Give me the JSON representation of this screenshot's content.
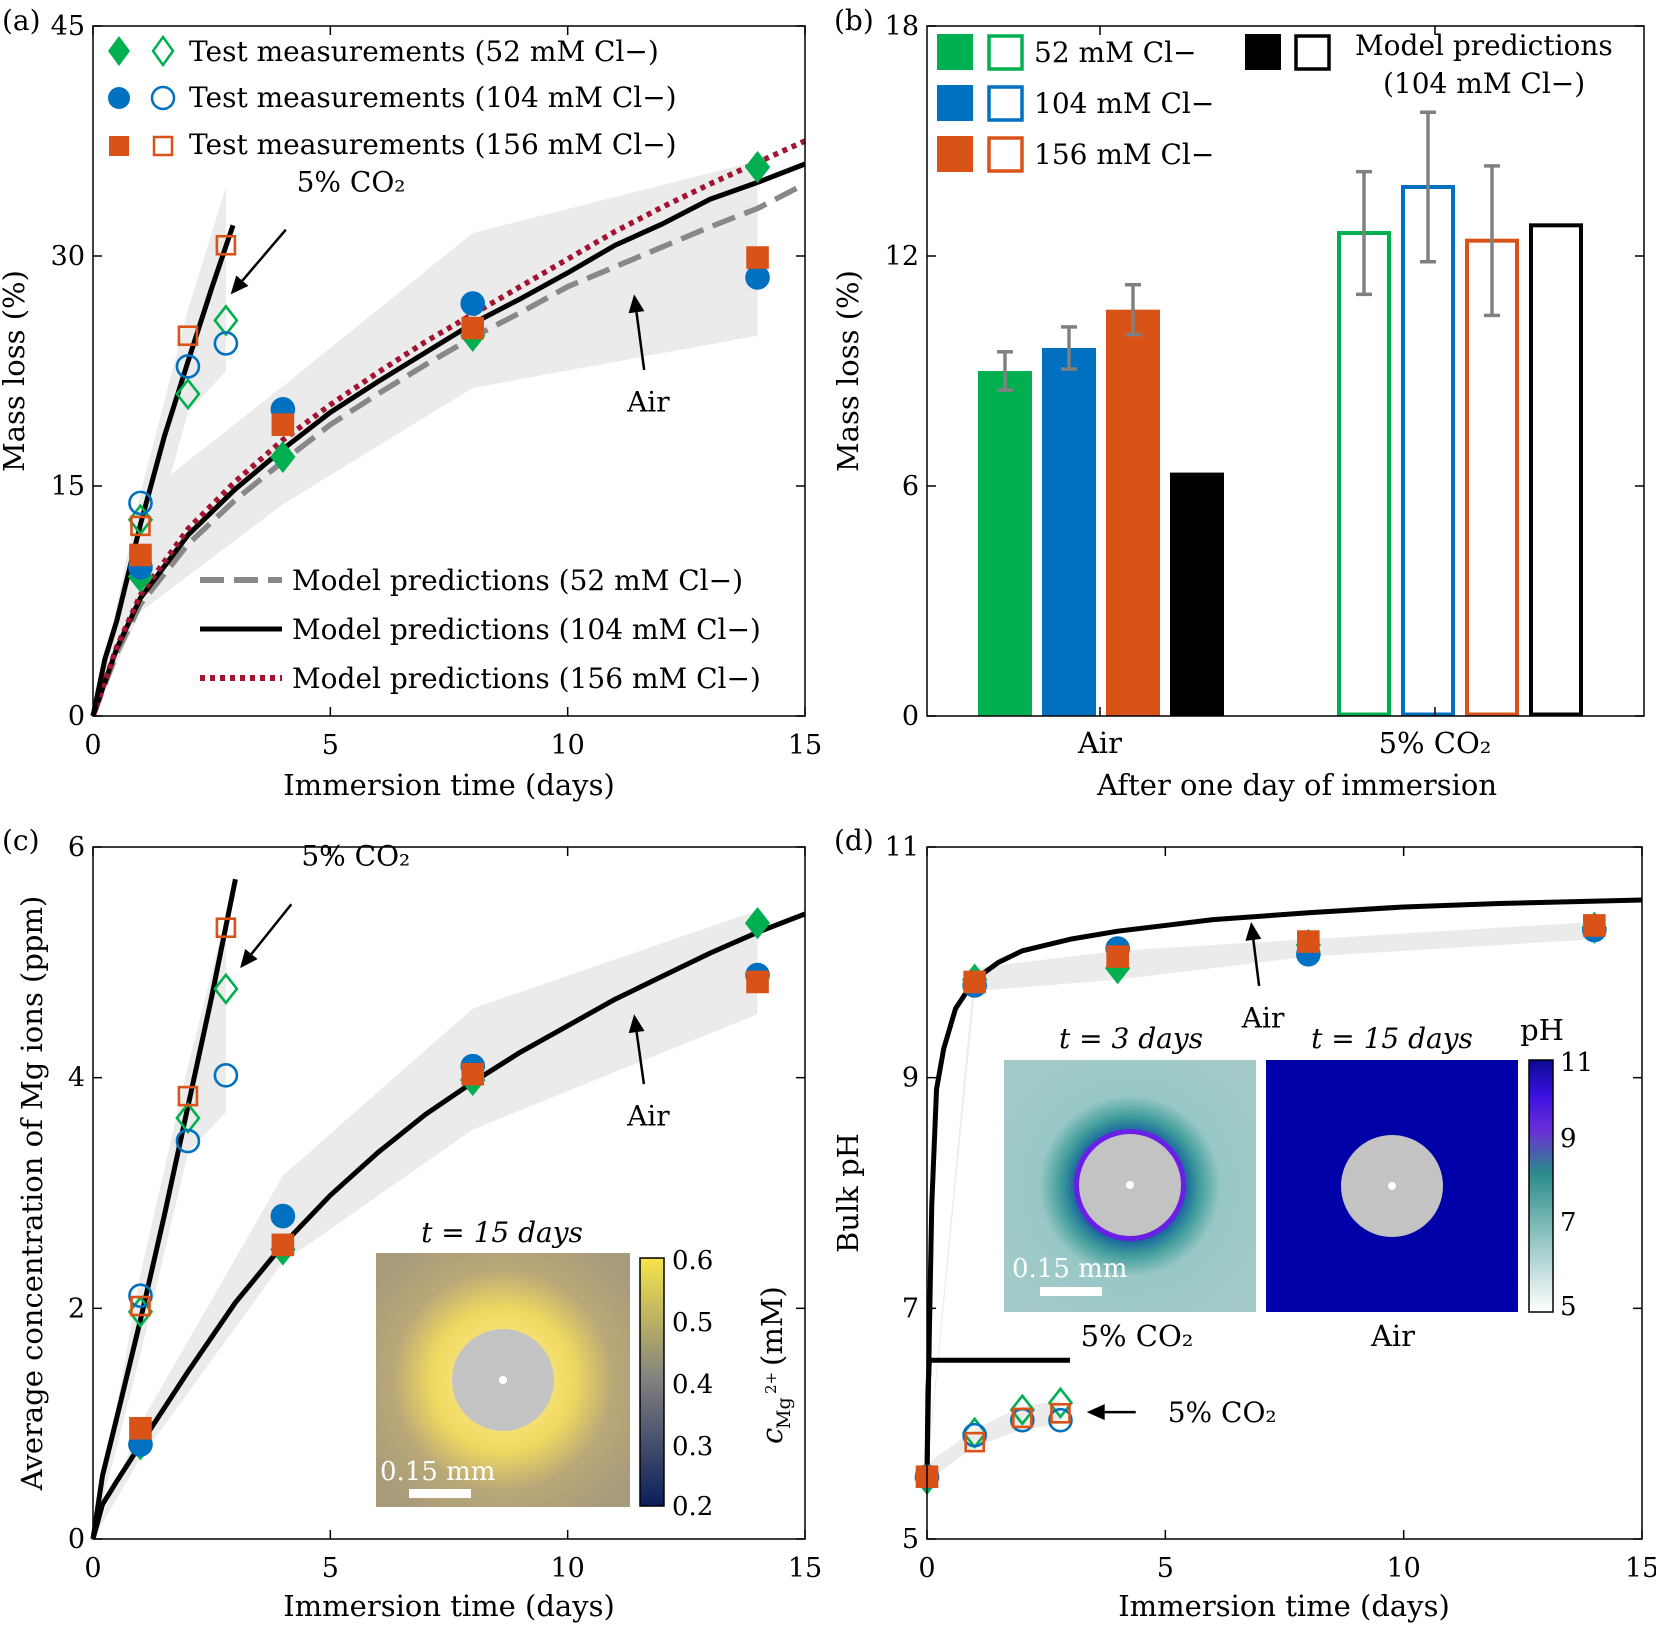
{
  "colors": {
    "green": "#00b050",
    "blue": "#0070c0",
    "orange": "#d95319",
    "model_104": "#000000",
    "model_52": "#888888",
    "model_156": "#a2142f",
    "band": "#ebebeb",
    "errorbar": "#808080"
  },
  "chart_data": [
    {
      "panel": "(a)",
      "type": "scatter+line",
      "xlabel": "Immersion time (days)",
      "ylabel": "Mass loss (%)",
      "xlim": [
        0,
        15
      ],
      "ylim": [
        0,
        45
      ],
      "xticks": [
        0,
        5,
        10,
        15
      ],
      "yticks": [
        0,
        15,
        30,
        45
      ],
      "legend": [
        {
          "label": "Test measurements (52 mM Cl−)",
          "color": "green",
          "marker": "diamond"
        },
        {
          "label": "Test measurements (104 mM Cl−)",
          "color": "blue",
          "marker": "circle"
        },
        {
          "label": "Test measurements (156 mM Cl−)",
          "color": "orange",
          "marker": "square"
        }
      ],
      "legend2": [
        {
          "label": "Model predictions (52 mM Cl−)",
          "style": "dashed",
          "color": "model_52"
        },
        {
          "label": "Model predictions (104 mM Cl−)",
          "style": "solid",
          "color": "model_104"
        },
        {
          "label": "Model predictions (156 mM Cl−)",
          "style": "dotted",
          "color": "model_156"
        }
      ],
      "annotations": [
        {
          "text": "5% CO₂",
          "target": [
            2.9,
            27.5
          ],
          "label_at": [
            4.5,
            33.3
          ]
        },
        {
          "text": "Air",
          "target": [
            11.4,
            27.5
          ],
          "label_at": [
            11.7,
            20.5
          ]
        }
      ],
      "air_band": {
        "x": [
          0,
          1,
          4,
          8,
          14
        ],
        "lower": [
          0,
          6.8,
          13.8,
          21.4,
          24.8
        ],
        "upper": [
          0,
          14.2,
          21.5,
          31.5,
          36.2
        ]
      },
      "co2_band": {
        "x": [
          0,
          1,
          2,
          2.8
        ],
        "lower": [
          0,
          8.6,
          19.8,
          22.5
        ],
        "upper": [
          0,
          14.5,
          26.5,
          34.5
        ]
      },
      "series": [
        {
          "name": "52 mM Air",
          "color": "green",
          "marker": "diamond",
          "filled": true,
          "x": [
            1,
            4,
            8,
            14
          ],
          "y": [
            9.1,
            16.9,
            24.8,
            35.8
          ]
        },
        {
          "name": "104 mM Air",
          "color": "blue",
          "marker": "circle",
          "filled": true,
          "x": [
            1,
            4,
            8,
            14
          ],
          "y": [
            9.7,
            20.0,
            26.9,
            28.6
          ]
        },
        {
          "name": "156 mM Air",
          "color": "orange",
          "marker": "square",
          "filled": true,
          "x": [
            1,
            4,
            8,
            14
          ],
          "y": [
            10.5,
            19.0,
            25.3,
            29.9
          ]
        },
        {
          "name": "52 mM 5% CO2",
          "color": "green",
          "marker": "diamond",
          "filled": false,
          "x": [
            1,
            2,
            2.8
          ],
          "y": [
            12.8,
            21.0,
            25.8
          ]
        },
        {
          "name": "104 mM 5% CO2",
          "color": "blue",
          "marker": "circle",
          "filled": false,
          "x": [
            1,
            2,
            2.8
          ],
          "y": [
            13.9,
            22.8,
            24.3
          ]
        },
        {
          "name": "156 mM 5% CO2",
          "color": "orange",
          "marker": "square",
          "filled": false,
          "x": [
            1,
            2,
            2.8
          ],
          "y": [
            12.4,
            24.8,
            30.7
          ]
        }
      ],
      "lines": [
        {
          "name": "model 52 air",
          "style": "dashed",
          "color": "model_52",
          "x": [
            0,
            0.5,
            1,
            2,
            3,
            4,
            5,
            6,
            7,
            8,
            9,
            10,
            11,
            12,
            13,
            14,
            15
          ],
          "y": [
            0,
            4.1,
            7.3,
            11.2,
            14.1,
            16.6,
            19.0,
            21.0,
            22.9,
            24.7,
            26.3,
            28.0,
            29.3,
            30.6,
            31.9,
            33.1,
            34.7
          ]
        },
        {
          "name": "model 104 air",
          "style": "solid",
          "color": "model_104",
          "x": [
            0,
            0.5,
            1,
            2,
            3,
            4,
            5,
            6,
            7,
            8,
            9,
            10,
            11,
            12,
            13,
            14,
            15
          ],
          "y": [
            0,
            4.4,
            7.7,
            11.8,
            14.8,
            17.4,
            19.8,
            21.8,
            23.7,
            25.6,
            27.2,
            28.9,
            30.7,
            32.1,
            33.7,
            34.8,
            36.0
          ]
        },
        {
          "name": "model 156 air",
          "style": "dotted",
          "color": "model_156",
          "x": [
            0,
            0.5,
            1,
            2,
            3,
            4,
            5,
            6,
            7,
            8,
            9,
            10,
            11,
            12,
            13,
            14,
            15
          ],
          "y": [
            0,
            4.5,
            7.9,
            12.2,
            15.3,
            18.0,
            20.3,
            22.4,
            24.4,
            26.2,
            28.0,
            29.8,
            31.6,
            33.2,
            34.7,
            36.1,
            37.5
          ]
        },
        {
          "name": "model 104 co2",
          "style": "solid",
          "color": "model_104",
          "x": [
            0,
            0.25,
            0.5,
            1,
            1.5,
            2,
            2.5,
            2.95
          ],
          "y": [
            0,
            3.7,
            6.2,
            12.5,
            18.2,
            23.1,
            27.9,
            32.0
          ]
        }
      ]
    },
    {
      "panel": "(b)",
      "type": "bar",
      "xlabel": "After one day of immersion",
      "ylabel": "Mass loss (%)",
      "ylim": [
        0,
        18
      ],
      "yticks": [
        0,
        6,
        12,
        18
      ],
      "categories": [
        "Air",
        "5% CO₂"
      ],
      "legend": [
        {
          "label": "52 mM Cl−",
          "color": "green"
        },
        {
          "label": "104 mM Cl−",
          "color": "blue"
        },
        {
          "label": "156 mM Cl−",
          "color": "orange"
        },
        {
          "label": "Model predictions",
          "label2": "(104 mM Cl−)",
          "color": "model_104"
        }
      ],
      "series": [
        {
          "name": "52 mM Cl−",
          "color": "green",
          "values": [
            9.0,
            12.6
          ],
          "err": [
            0.5,
            1.6
          ]
        },
        {
          "name": "104 mM Cl−",
          "color": "blue",
          "values": [
            9.6,
            13.8
          ],
          "err": [
            0.55,
            1.95
          ]
        },
        {
          "name": "156 mM Cl−",
          "color": "orange",
          "values": [
            10.6,
            12.4
          ],
          "err": [
            0.65,
            1.95
          ]
        },
        {
          "name": "Model predictions (104 mM Cl−)",
          "color": "model_104",
          "values": [
            6.35,
            12.8
          ],
          "err": null
        }
      ]
    },
    {
      "panel": "(c)",
      "type": "scatter+line",
      "xlabel": "Immersion time (days)",
      "ylabel": "Average concentration of Mg ions (ppm)",
      "xlim": [
        0,
        15
      ],
      "ylim": [
        0,
        6
      ],
      "xticks": [
        0,
        5,
        10,
        15
      ],
      "yticks": [
        0,
        2,
        4,
        6
      ],
      "annotations": [
        {
          "text": "5% CO₂",
          "target": [
            3.1,
            4.95
          ],
          "label_at": [
            4.6,
            5.72
          ]
        },
        {
          "text": "Air",
          "target": [
            11.4,
            4.55
          ],
          "label_at": [
            11.7,
            3.67
          ]
        }
      ],
      "air_band": {
        "x": [
          0,
          1,
          4,
          8,
          14
        ],
        "lower": [
          0,
          0.7,
          2.4,
          3.55,
          4.55
        ],
        "upper": [
          0,
          1.0,
          3.15,
          4.6,
          5.45
        ]
      },
      "co2_band": {
        "x": [
          0,
          1,
          2,
          2.8
        ],
        "lower": [
          0,
          1.6,
          3.35,
          3.7
        ],
        "upper": [
          0,
          2.3,
          4.1,
          5.4
        ]
      },
      "series": [
        {
          "name": "52 mM Air",
          "color": "green",
          "marker": "diamond",
          "filled": true,
          "x": [
            1,
            4,
            8,
            14
          ],
          "y": [
            0.82,
            2.51,
            3.98,
            5.34
          ]
        },
        {
          "name": "104 mM Air",
          "color": "blue",
          "marker": "circle",
          "filled": true,
          "x": [
            1,
            4,
            8,
            14
          ],
          "y": [
            0.82,
            2.8,
            4.1,
            4.89
          ]
        },
        {
          "name": "156 mM Air",
          "color": "orange",
          "marker": "square",
          "filled": true,
          "x": [
            1,
            4,
            8,
            14
          ],
          "y": [
            0.96,
            2.55,
            4.03,
            4.83
          ]
        },
        {
          "name": "52 mM 5% CO2",
          "color": "green",
          "marker": "diamond",
          "filled": false,
          "x": [
            1,
            2,
            2.8
          ],
          "y": [
            1.97,
            3.65,
            4.77
          ]
        },
        {
          "name": "104 mM 5% CO2",
          "color": "blue",
          "marker": "circle",
          "filled": false,
          "x": [
            1,
            2,
            2.8
          ],
          "y": [
            2.11,
            3.45,
            4.02
          ]
        },
        {
          "name": "156 mM 5% CO2",
          "color": "orange",
          "marker": "square",
          "filled": false,
          "x": [
            1,
            2,
            2.8
          ],
          "y": [
            2.02,
            3.84,
            5.3
          ]
        }
      ],
      "lines": [
        {
          "name": "model air",
          "style": "solid",
          "color": "model_104",
          "x": [
            0,
            0.2,
            0.5,
            1,
            2,
            3,
            4,
            5,
            6,
            7,
            8,
            9,
            10,
            11,
            12,
            13,
            14,
            15
          ],
          "y": [
            0,
            0.3,
            0.5,
            0.82,
            1.45,
            2.05,
            2.55,
            2.98,
            3.35,
            3.68,
            3.96,
            4.22,
            4.45,
            4.68,
            4.88,
            5.08,
            5.26,
            5.42
          ]
        },
        {
          "name": "model co2",
          "style": "solid",
          "color": "model_104",
          "x": [
            0,
            0.2,
            0.5,
            1,
            1.5,
            2,
            2.5,
            3.0
          ],
          "y": [
            0,
            0.55,
            1.05,
            1.9,
            2.8,
            3.75,
            4.7,
            5.72
          ]
        }
      ],
      "inset": {
        "title": "t = 15 days",
        "scale_label": "0.15 mm",
        "colorbar_ticks": [
          "0.6",
          "0.5",
          "0.4",
          "0.3",
          "0.2"
        ],
        "colorbar_label": "c",
        "colorbar_sub": "Mg",
        "colorbar_sup": "2+",
        "colorbar_unit": "(mM)"
      }
    },
    {
      "panel": "(d)",
      "type": "scatter+line",
      "xlabel": "Immersion time (days)",
      "ylabel": "Bulk pH",
      "xlim": [
        0,
        15
      ],
      "ylim": [
        5,
        11
      ],
      "xticks": [
        0,
        5,
        10,
        15
      ],
      "yticks": [
        5,
        7,
        9,
        11
      ],
      "annotations": [
        {
          "text": "Air",
          "target": [
            6.8,
            10.35
          ],
          "label_at": [
            7.05,
            9.52
          ]
        },
        {
          "text": "5% CO₂",
          "target": [
            3.35,
            6.1
          ],
          "label_at": [
            5.05,
            6.1
          ]
        }
      ],
      "air_band": {
        "x": [
          0,
          1,
          4,
          8,
          14
        ],
        "lower": [
          5.55,
          9.75,
          9.85,
          10.05,
          10.2
        ],
        "upper": [
          5.6,
          9.95,
          10.1,
          10.2,
          10.35
        ]
      },
      "co2_band": {
        "x": [
          0,
          1,
          2,
          2.8
        ],
        "lower": [
          5.5,
          5.8,
          5.95,
          6.0
        ],
        "upper": [
          5.65,
          5.95,
          6.15,
          6.2
        ]
      },
      "series": [
        {
          "name": "52 mM Air",
          "color": "green",
          "marker": "diamond",
          "filled": true,
          "x": [
            0,
            1,
            4,
            8,
            14
          ],
          "y": [
            5.52,
            9.85,
            9.95,
            10.15,
            10.3
          ]
        },
        {
          "name": "104 mM Air",
          "color": "blue",
          "marker": "circle",
          "filled": true,
          "x": [
            0,
            1,
            4,
            8,
            14
          ],
          "y": [
            5.54,
            9.8,
            10.12,
            10.07,
            10.28
          ]
        },
        {
          "name": "156 mM Air",
          "color": "orange",
          "marker": "square",
          "filled": true,
          "x": [
            0,
            1,
            4,
            8,
            14
          ],
          "y": [
            5.54,
            9.83,
            10.05,
            10.18,
            10.32
          ]
        },
        {
          "name": "52 mM 5% CO2",
          "color": "green",
          "marker": "diamond",
          "filled": false,
          "x": [
            1,
            2,
            2.8
          ],
          "y": [
            5.92,
            6.12,
            6.18
          ]
        },
        {
          "name": "104 mM 5% CO2",
          "color": "blue",
          "marker": "circle",
          "filled": false,
          "x": [
            1,
            2,
            2.8
          ],
          "y": [
            5.9,
            6.03,
            6.03
          ]
        },
        {
          "name": "156 mM 5% CO2",
          "color": "orange",
          "marker": "square",
          "filled": false,
          "x": [
            1,
            2,
            2.8
          ],
          "y": [
            5.84,
            6.05,
            6.09
          ]
        }
      ],
      "lines": [
        {
          "name": "model air",
          "style": "solid",
          "color": "model_104",
          "x": [
            0,
            0.05,
            0.1,
            0.2,
            0.35,
            0.6,
            1,
            1.5,
            2,
            3,
            4,
            5,
            6,
            8,
            10,
            12,
            15
          ],
          "y": [
            5.55,
            6.8,
            7.9,
            8.9,
            9.25,
            9.6,
            9.85,
            10.0,
            10.1,
            10.2,
            10.27,
            10.32,
            10.37,
            10.43,
            10.48,
            10.51,
            10.54
          ]
        },
        {
          "name": "model co2",
          "style": "solid",
          "color": "model_104",
          "x": [
            0,
            0.02,
            0.05,
            0.1,
            0.5,
            1,
            2,
            3.0
          ],
          "y": [
            5.55,
            6.3,
            6.55,
            6.55,
            6.55,
            6.55,
            6.55,
            6.55
          ]
        }
      ],
      "inset": {
        "title_left": "t = 3 days",
        "title_right": "t = 15 days",
        "label_left": "5% CO₂",
        "label_right": "Air",
        "scale_label": "0.15 mm",
        "colorbar_title": "pH",
        "colorbar_ticks": [
          "11",
          "9",
          "7",
          "5"
        ]
      }
    }
  ]
}
